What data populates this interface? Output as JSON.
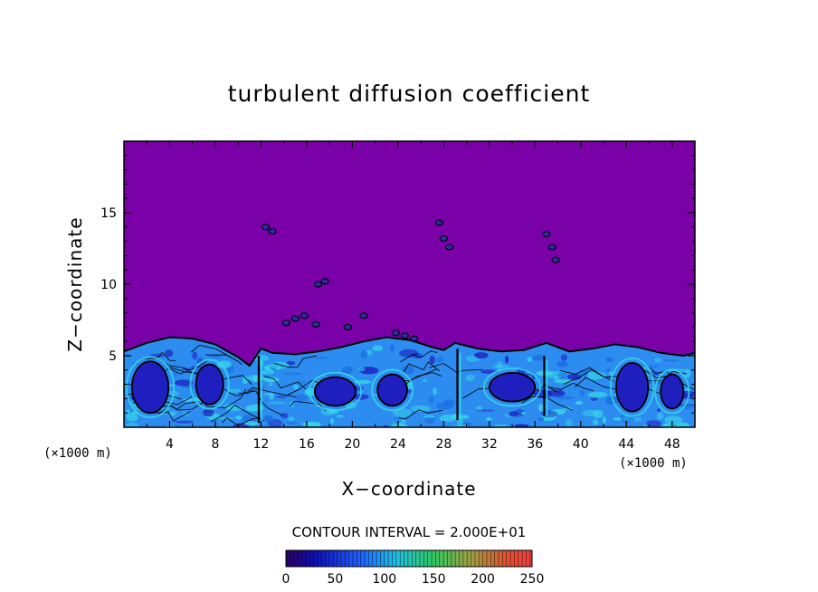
{
  "chart_data": {
    "type": "heatmap",
    "title": "turbulent diffusion coefficient",
    "xlabel": "X−coordinate",
    "ylabel": "Z−coordinate",
    "x_unit_left": "(×1000 m)",
    "x_unit_right": "(×1000 m)",
    "xlim": [
      0,
      50
    ],
    "ylim": [
      0,
      20
    ],
    "x_ticks": [
      4,
      8,
      12,
      16,
      20,
      24,
      28,
      32,
      36,
      40,
      44,
      48
    ],
    "y_ticks": [
      5,
      10,
      15
    ],
    "contour_interval_text": "CONTOUR INTERVAL = 2.000E+01",
    "colorbar": {
      "min": 0,
      "max": 250,
      "ticks": [
        0,
        50,
        100,
        150,
        200,
        250
      ]
    },
    "colors": {
      "background_field": "#7a00a8",
      "low": "#1f1fbf",
      "mid": "#2c8cf0",
      "high": "#36d8e8"
    },
    "boundary_layer_top": [
      [
        0,
        5.3
      ],
      [
        2,
        5.9
      ],
      [
        4,
        6.3
      ],
      [
        6,
        6.2
      ],
      [
        8,
        5.8
      ],
      [
        10,
        4.9
      ],
      [
        11,
        4.3
      ],
      [
        12,
        5.5
      ],
      [
        13,
        5.2
      ],
      [
        15,
        5.1
      ],
      [
        17,
        5.3
      ],
      [
        19,
        5.6
      ],
      [
        21,
        6.0
      ],
      [
        23,
        6.3
      ],
      [
        25,
        6.1
      ],
      [
        27,
        5.6
      ],
      [
        28,
        5.4
      ],
      [
        29,
        5.9
      ],
      [
        31,
        5.5
      ],
      [
        33,
        5.3
      ],
      [
        35,
        5.4
      ],
      [
        37,
        5.9
      ],
      [
        39,
        5.3
      ],
      [
        41,
        5.5
      ],
      [
        43,
        5.8
      ],
      [
        45,
        5.6
      ],
      [
        47,
        5.2
      ],
      [
        49,
        5.0
      ],
      [
        50,
        5.2
      ]
    ],
    "eddies": [
      {
        "x": 2.3,
        "z": 2.8,
        "rx": 1.6,
        "rz": 1.8
      },
      {
        "x": 7.5,
        "z": 3.0,
        "rx": 1.2,
        "rz": 1.4
      },
      {
        "x": 18.5,
        "z": 2.5,
        "rx": 1.8,
        "rz": 1.0
      },
      {
        "x": 23.5,
        "z": 2.6,
        "rx": 1.3,
        "rz": 1.1
      },
      {
        "x": 34.0,
        "z": 2.8,
        "rx": 2.0,
        "rz": 1.0
      },
      {
        "x": 44.5,
        "z": 2.8,
        "rx": 1.4,
        "rz": 1.7
      },
      {
        "x": 48.0,
        "z": 2.5,
        "rx": 1.0,
        "rz": 1.2
      }
    ],
    "updraft_streaks": [
      {
        "x": 11.8,
        "z0": 0.3,
        "z1": 5.0
      },
      {
        "x": 29.2,
        "z0": 0.5,
        "z1": 5.5
      },
      {
        "x": 36.8,
        "z0": 0.8,
        "z1": 5.0
      }
    ],
    "blobs": [
      {
        "x": 12.4,
        "z": 14.0
      },
      {
        "x": 13.0,
        "z": 13.7
      },
      {
        "x": 27.6,
        "z": 14.3
      },
      {
        "x": 28.0,
        "z": 13.2
      },
      {
        "x": 28.5,
        "z": 12.6
      },
      {
        "x": 37.0,
        "z": 13.5
      },
      {
        "x": 37.5,
        "z": 12.6
      },
      {
        "x": 37.8,
        "z": 11.7
      },
      {
        "x": 17.0,
        "z": 10.0
      },
      {
        "x": 17.6,
        "z": 10.2
      },
      {
        "x": 14.2,
        "z": 7.3
      },
      {
        "x": 15.0,
        "z": 7.6
      },
      {
        "x": 15.8,
        "z": 7.8
      },
      {
        "x": 16.8,
        "z": 7.2
      },
      {
        "x": 19.6,
        "z": 7.0
      },
      {
        "x": 21.0,
        "z": 7.8
      },
      {
        "x": 23.8,
        "z": 6.6
      },
      {
        "x": 24.6,
        "z": 6.4
      },
      {
        "x": 25.4,
        "z": 6.2
      }
    ]
  }
}
